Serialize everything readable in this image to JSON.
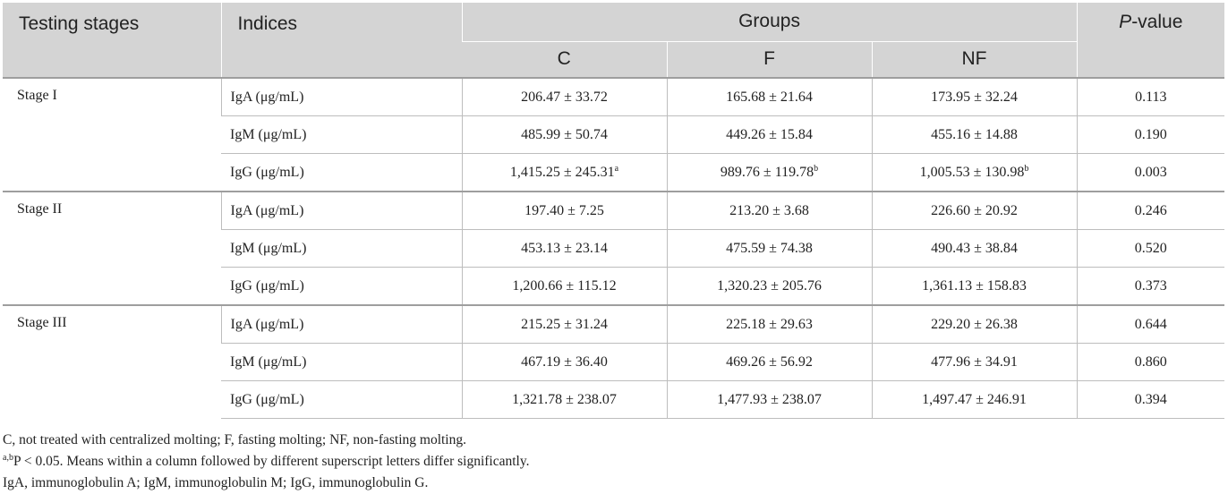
{
  "header": {
    "testing_stages": "Testing stages",
    "indices": "Indices",
    "groups": "Groups",
    "p_value_italic": "P",
    "p_value_rest": "-value",
    "group_c": "C",
    "group_f": "F",
    "group_nf": "NF"
  },
  "stages": [
    {
      "label": "Stage I",
      "rows": [
        {
          "index": "IgA (μg/mL)",
          "c": "206.47 ± 33.72",
          "c_sup": "",
          "f": "165.68 ± 21.64",
          "f_sup": "",
          "nf": "173.95 ± 32.24",
          "nf_sup": "",
          "p": "0.113"
        },
        {
          "index": "IgM (μg/mL)",
          "c": "485.99 ± 50.74",
          "c_sup": "",
          "f": "449.26 ± 15.84",
          "f_sup": "",
          "nf": "455.16 ± 14.88",
          "nf_sup": "",
          "p": "0.190"
        },
        {
          "index": "IgG (μg/mL)",
          "c": "1,415.25 ± 245.31",
          "c_sup": "a",
          "f": "989.76 ± 119.78",
          "f_sup": "b",
          "nf": "1,005.53 ± 130.98",
          "nf_sup": "b",
          "p": "0.003"
        }
      ]
    },
    {
      "label": "Stage II",
      "rows": [
        {
          "index": "IgA (μg/mL)",
          "c": "197.40 ± 7.25",
          "c_sup": "",
          "f": "213.20 ± 3.68",
          "f_sup": "",
          "nf": "226.60 ± 20.92",
          "nf_sup": "",
          "p": "0.246"
        },
        {
          "index": "IgM (μg/mL)",
          "c": "453.13 ± 23.14",
          "c_sup": "",
          "f": "475.59 ± 74.38",
          "f_sup": "",
          "nf": "490.43 ± 38.84",
          "nf_sup": "",
          "p": "0.520"
        },
        {
          "index": "IgG (μg/mL)",
          "c": "1,200.66 ± 115.12",
          "c_sup": "",
          "f": "1,320.23 ± 205.76",
          "f_sup": "",
          "nf": "1,361.13 ± 158.83",
          "nf_sup": "",
          "p": "0.373"
        }
      ]
    },
    {
      "label": "Stage III",
      "rows": [
        {
          "index": "IgA (μg/mL)",
          "c": "215.25 ± 31.24",
          "c_sup": "",
          "f": "225.18 ± 29.63",
          "f_sup": "",
          "nf": "229.20 ± 26.38",
          "nf_sup": "",
          "p": "0.644"
        },
        {
          "index": "IgM (μg/mL)",
          "c": "467.19 ± 36.40",
          "c_sup": "",
          "f": "469.26 ± 56.92",
          "f_sup": "",
          "nf": "477.96 ± 34.91",
          "nf_sup": "",
          "p": "0.860"
        },
        {
          "index": "IgG (μg/mL)",
          "c": "1,321.78 ± 238.07",
          "c_sup": "",
          "f": "1,477.93 ± 238.07",
          "f_sup": "",
          "nf": "1,497.47 ± 246.91",
          "nf_sup": "",
          "p": "0.394"
        }
      ]
    }
  ],
  "footnotes": {
    "line1": "C, not treated with centralized molting; F, fasting molting; NF, non-fasting molting.",
    "line2_sup": "a,b",
    "line2": "P < 0.05. Means within a column followed by different superscript letters differ significantly.",
    "line3": "IgA, immunoglobulin A; IgM, immunoglobulin M; IgG, immunoglobulin G."
  }
}
